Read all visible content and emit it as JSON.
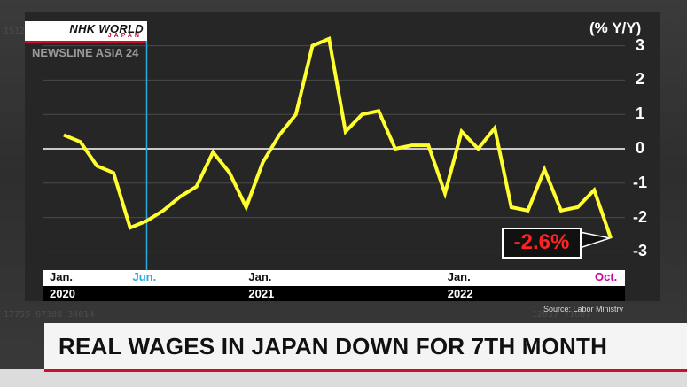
{
  "broadcaster": {
    "logo": "NHK WORLD",
    "logo_sub": "JAPAN",
    "program": "NEWSLINE ASIA 24"
  },
  "headline": "REAL WAGES IN JAPAN DOWN FOR 7TH MONTH",
  "source": "Source: Labor Ministry",
  "colors": {
    "line": "#ffff30",
    "highlight": "#2aa8e0",
    "callout_text": "#ff2323",
    "oct_label": "#cc0099"
  },
  "chart_data": {
    "type": "line",
    "title": "",
    "ylabel": "(% Y/Y)",
    "xlabel": "",
    "ylim": [
      -3.2,
      3.3
    ],
    "yticks": [
      3,
      2,
      1,
      0,
      -1,
      -2,
      -3
    ],
    "grid": true,
    "x_axis_labels": [
      {
        "month": "Jan.",
        "year": "2020",
        "index": 0
      },
      {
        "month": "Jun.",
        "year": "",
        "index": 5
      },
      {
        "month": "Jan.",
        "year": "2021",
        "index": 12
      },
      {
        "month": "Jan.",
        "year": "2022",
        "index": 24
      },
      {
        "month": "Oct.",
        "year": "",
        "index": 33
      }
    ],
    "series": [
      {
        "x": [
          "2020-01",
          "2020-02",
          "2020-03",
          "2020-04",
          "2020-05",
          "2020-06",
          "2020-07",
          "2020-08",
          "2020-09",
          "2020-10",
          "2020-11",
          "2020-12",
          "2021-01",
          "2021-02",
          "2021-03",
          "2021-04",
          "2021-05",
          "2021-06",
          "2021-07",
          "2021-08",
          "2021-09",
          "2021-10",
          "2021-11",
          "2021-12",
          "2022-01",
          "2022-02",
          "2022-03",
          "2022-04",
          "2022-05",
          "2022-06",
          "2022-07",
          "2022-08",
          "2022-09",
          "2022-10"
        ],
        "values": [
          0.4,
          0.2,
          -0.5,
          -0.7,
          -2.3,
          -2.1,
          -1.8,
          -1.4,
          -1.1,
          -0.1,
          -0.7,
          -1.7,
          -0.4,
          0.4,
          1.0,
          3.0,
          3.2,
          0.5,
          1.0,
          1.1,
          0.0,
          0.1,
          0.1,
          -1.3,
          0.5,
          0.0,
          0.6,
          -1.7,
          -1.8,
          -0.6,
          -1.8,
          -1.7,
          -1.2,
          -2.6
        ]
      }
    ],
    "highlight_index": 5,
    "annotation": {
      "label": "-2.6%",
      "index": 33
    }
  }
}
